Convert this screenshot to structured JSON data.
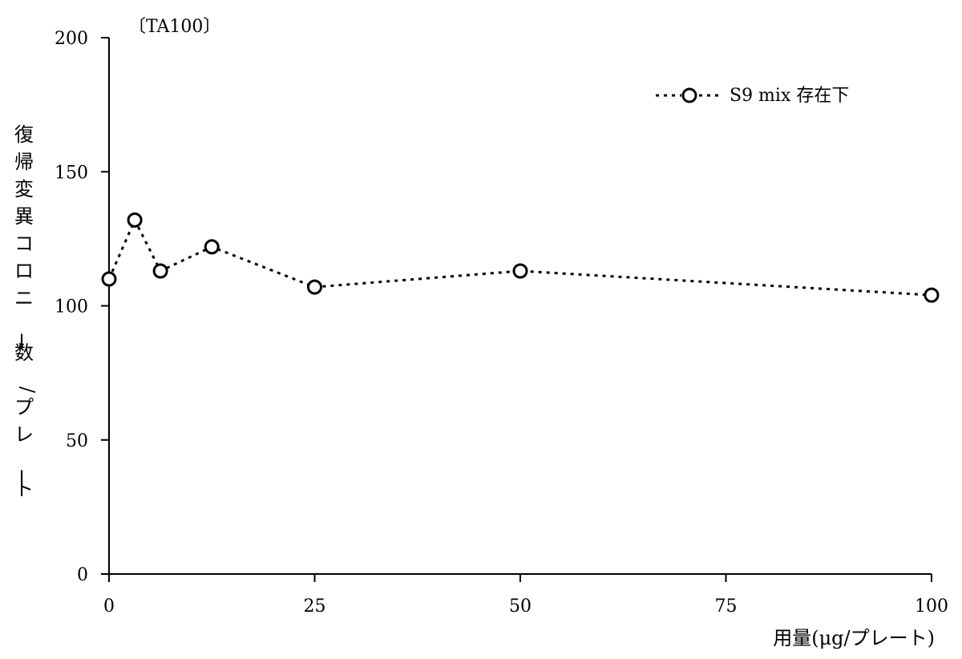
{
  "chart_data": {
    "type": "line",
    "title": "",
    "tag": "〔TA100〕",
    "xlabel": "用量(μg/プレート)",
    "ylabel": "復帰変異コロニー数/プレート",
    "xlim": [
      0,
      100
    ],
    "ylim": [
      0,
      200
    ],
    "xticks": [
      0,
      25,
      50,
      75,
      100
    ],
    "yticks": [
      0,
      50,
      100,
      150,
      200
    ],
    "xtick_labels": [
      "0",
      "25",
      "50",
      "75",
      "100"
    ],
    "ytick_labels": [
      "0",
      "50",
      "100",
      "150",
      "200"
    ],
    "grid": false,
    "legend_position": "top-right",
    "series": [
      {
        "name": "S9 mix 存在下",
        "marker": "open-circle",
        "line_style": "dotted",
        "color": "#000000",
        "x": [
          0,
          3.13,
          6.25,
          12.5,
          25,
          50,
          100
        ],
        "y": [
          110,
          132,
          113,
          122,
          107,
          113,
          104
        ]
      }
    ]
  }
}
